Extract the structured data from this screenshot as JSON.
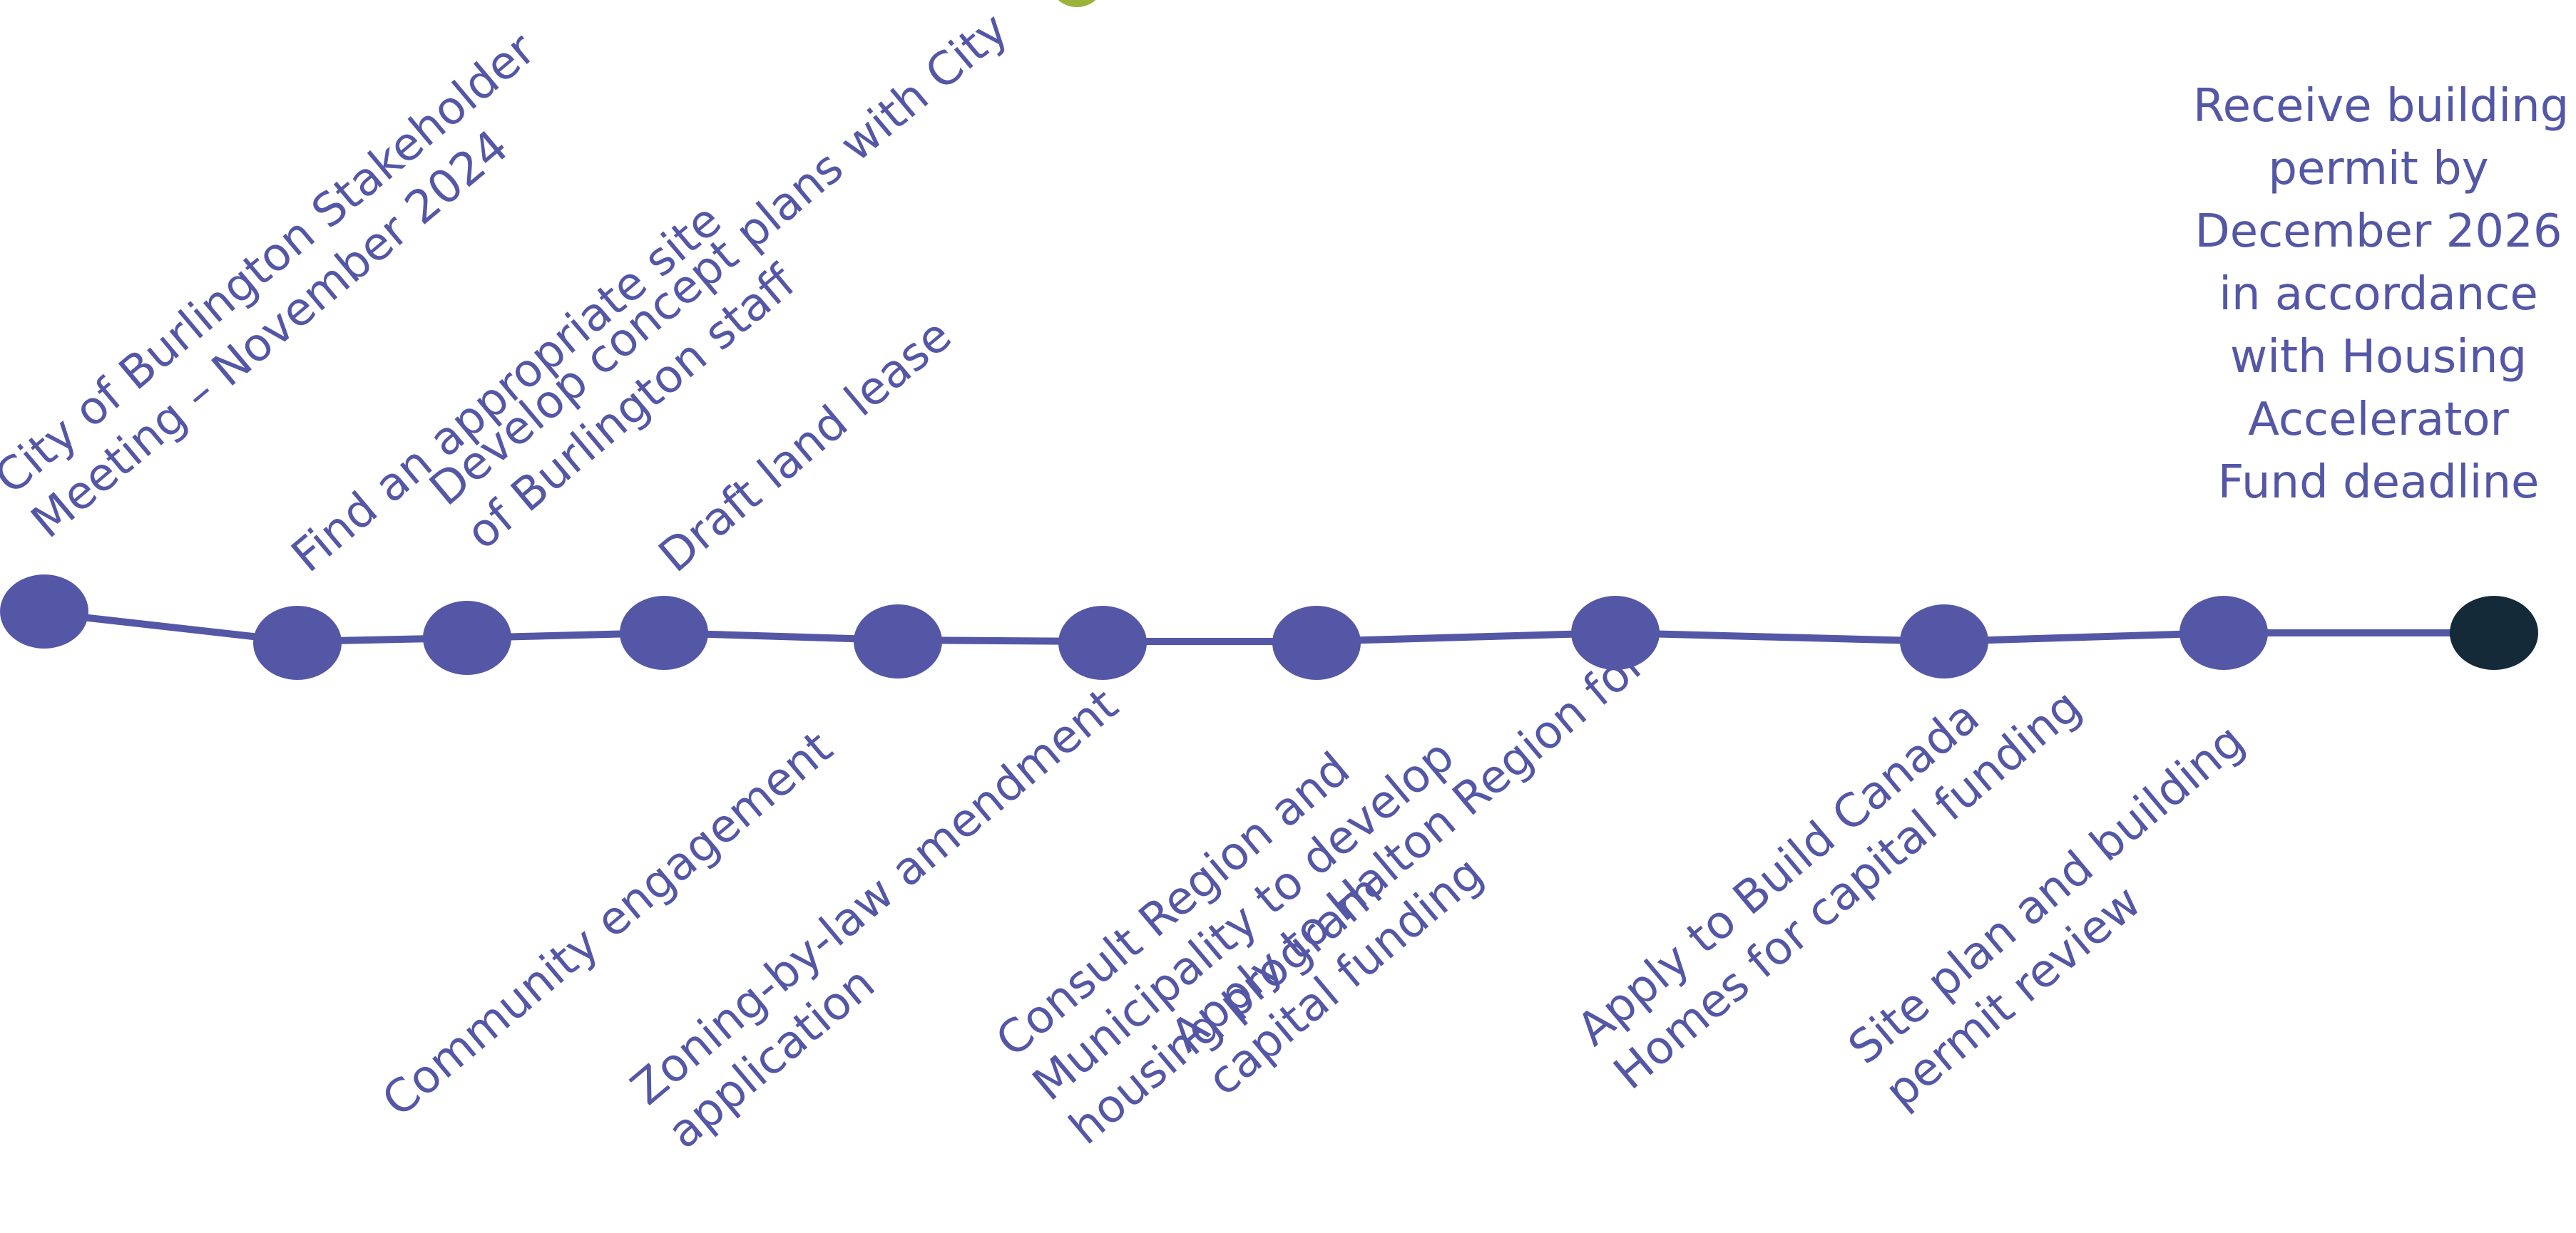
{
  "colors": {
    "accent": "#5457A6",
    "final_node": "#142A38",
    "top_arc": "#9BB33A"
  },
  "milestones": [
    {
      "label": "City of Burlington Stakeholder\nMeeting – November 2024",
      "position": "above"
    },
    {
      "label": "Find an appropriate site",
      "position": "above"
    },
    {
      "label": "Develop concept plans with City\nof Burlington staff",
      "position": "above"
    },
    {
      "label": "Draft land lease",
      "position": "above"
    },
    {
      "label": "Community engagement",
      "position": "below"
    },
    {
      "label": "Zoning-by-law amendment\napplication",
      "position": "below"
    },
    {
      "label": "Consult Region and\nMunicipality to develop\nhousing program",
      "position": "below"
    },
    {
      "label": "Apply to Halton Region for\ncapital funding",
      "position": "below"
    },
    {
      "label": "Apply to Build Canada\nHomes for capital funding",
      "position": "below"
    },
    {
      "label": "Site plan and building\npermit review",
      "position": "below"
    }
  ],
  "final_milestone": {
    "label": "Receive building\npermit by\nDecember 2026\nin accordance\nwith Housing\nAccelerator\nFund deadline"
  }
}
